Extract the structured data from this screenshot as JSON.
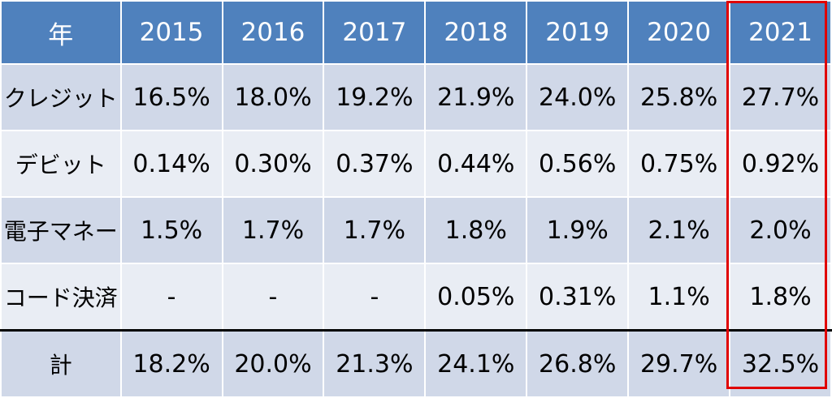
{
  "table": {
    "header": [
      "年",
      "2015",
      "2016",
      "2017",
      "2018",
      "2019",
      "2020",
      "2021"
    ],
    "rows": [
      {
        "label": "クレジット",
        "values": [
          "16.5%",
          "18.0%",
          "19.2%",
          "21.9%",
          "24.0%",
          "25.8%",
          "27.7%"
        ]
      },
      {
        "label": "デビット",
        "values": [
          "0.14%",
          "0.30%",
          "0.37%",
          "0.44%",
          "0.56%",
          "0.75%",
          "0.92%"
        ]
      },
      {
        "label": "電子マネー",
        "values": [
          "1.5%",
          "1.7%",
          "1.7%",
          "1.8%",
          "1.9%",
          "2.1%",
          "2.0%"
        ]
      },
      {
        "label": "コード決済",
        "values": [
          "-",
          "-",
          "-",
          "0.05%",
          "0.31%",
          "1.1%",
          "1.8%"
        ]
      },
      {
        "label": "計",
        "values": [
          "18.2%",
          "20.0%",
          "21.3%",
          "24.1%",
          "26.8%",
          "29.7%",
          "32.5%"
        ]
      }
    ]
  },
  "colors": {
    "header_bg": "#4f81bd",
    "row_odd_bg": "#d0d8e8",
    "row_even_bg": "#e9edf4",
    "highlight_border": "#e00000"
  }
}
